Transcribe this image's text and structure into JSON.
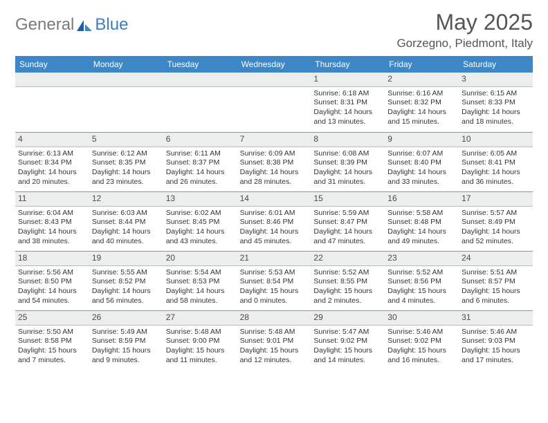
{
  "brand": {
    "general": "General",
    "blue": "Blue"
  },
  "header": {
    "month_title": "May 2025",
    "location": "Gorzegno, Piedmont, Italy"
  },
  "colors": {
    "header_bar": "#3d87c7",
    "dayname_text": "#ffffff",
    "daynum_bg": "#eceded",
    "row_border": "#8e9396",
    "body_text": "#333333"
  },
  "day_names": [
    "Sunday",
    "Monday",
    "Tuesday",
    "Wednesday",
    "Thursday",
    "Friday",
    "Saturday"
  ],
  "weeks": [
    [
      null,
      null,
      null,
      null,
      {
        "n": "1",
        "sunrise": "Sunrise: 6:18 AM",
        "sunset": "Sunset: 8:31 PM",
        "daylight": "Daylight: 14 hours and 13 minutes."
      },
      {
        "n": "2",
        "sunrise": "Sunrise: 6:16 AM",
        "sunset": "Sunset: 8:32 PM",
        "daylight": "Daylight: 14 hours and 15 minutes."
      },
      {
        "n": "3",
        "sunrise": "Sunrise: 6:15 AM",
        "sunset": "Sunset: 8:33 PM",
        "daylight": "Daylight: 14 hours and 18 minutes."
      }
    ],
    [
      {
        "n": "4",
        "sunrise": "Sunrise: 6:13 AM",
        "sunset": "Sunset: 8:34 PM",
        "daylight": "Daylight: 14 hours and 20 minutes."
      },
      {
        "n": "5",
        "sunrise": "Sunrise: 6:12 AM",
        "sunset": "Sunset: 8:35 PM",
        "daylight": "Daylight: 14 hours and 23 minutes."
      },
      {
        "n": "6",
        "sunrise": "Sunrise: 6:11 AM",
        "sunset": "Sunset: 8:37 PM",
        "daylight": "Daylight: 14 hours and 26 minutes."
      },
      {
        "n": "7",
        "sunrise": "Sunrise: 6:09 AM",
        "sunset": "Sunset: 8:38 PM",
        "daylight": "Daylight: 14 hours and 28 minutes."
      },
      {
        "n": "8",
        "sunrise": "Sunrise: 6:08 AM",
        "sunset": "Sunset: 8:39 PM",
        "daylight": "Daylight: 14 hours and 31 minutes."
      },
      {
        "n": "9",
        "sunrise": "Sunrise: 6:07 AM",
        "sunset": "Sunset: 8:40 PM",
        "daylight": "Daylight: 14 hours and 33 minutes."
      },
      {
        "n": "10",
        "sunrise": "Sunrise: 6:05 AM",
        "sunset": "Sunset: 8:41 PM",
        "daylight": "Daylight: 14 hours and 36 minutes."
      }
    ],
    [
      {
        "n": "11",
        "sunrise": "Sunrise: 6:04 AM",
        "sunset": "Sunset: 8:43 PM",
        "daylight": "Daylight: 14 hours and 38 minutes."
      },
      {
        "n": "12",
        "sunrise": "Sunrise: 6:03 AM",
        "sunset": "Sunset: 8:44 PM",
        "daylight": "Daylight: 14 hours and 40 minutes."
      },
      {
        "n": "13",
        "sunrise": "Sunrise: 6:02 AM",
        "sunset": "Sunset: 8:45 PM",
        "daylight": "Daylight: 14 hours and 43 minutes."
      },
      {
        "n": "14",
        "sunrise": "Sunrise: 6:01 AM",
        "sunset": "Sunset: 8:46 PM",
        "daylight": "Daylight: 14 hours and 45 minutes."
      },
      {
        "n": "15",
        "sunrise": "Sunrise: 5:59 AM",
        "sunset": "Sunset: 8:47 PM",
        "daylight": "Daylight: 14 hours and 47 minutes."
      },
      {
        "n": "16",
        "sunrise": "Sunrise: 5:58 AM",
        "sunset": "Sunset: 8:48 PM",
        "daylight": "Daylight: 14 hours and 49 minutes."
      },
      {
        "n": "17",
        "sunrise": "Sunrise: 5:57 AM",
        "sunset": "Sunset: 8:49 PM",
        "daylight": "Daylight: 14 hours and 52 minutes."
      }
    ],
    [
      {
        "n": "18",
        "sunrise": "Sunrise: 5:56 AM",
        "sunset": "Sunset: 8:50 PM",
        "daylight": "Daylight: 14 hours and 54 minutes."
      },
      {
        "n": "19",
        "sunrise": "Sunrise: 5:55 AM",
        "sunset": "Sunset: 8:52 PM",
        "daylight": "Daylight: 14 hours and 56 minutes."
      },
      {
        "n": "20",
        "sunrise": "Sunrise: 5:54 AM",
        "sunset": "Sunset: 8:53 PM",
        "daylight": "Daylight: 14 hours and 58 minutes."
      },
      {
        "n": "21",
        "sunrise": "Sunrise: 5:53 AM",
        "sunset": "Sunset: 8:54 PM",
        "daylight": "Daylight: 15 hours and 0 minutes."
      },
      {
        "n": "22",
        "sunrise": "Sunrise: 5:52 AM",
        "sunset": "Sunset: 8:55 PM",
        "daylight": "Daylight: 15 hours and 2 minutes."
      },
      {
        "n": "23",
        "sunrise": "Sunrise: 5:52 AM",
        "sunset": "Sunset: 8:56 PM",
        "daylight": "Daylight: 15 hours and 4 minutes."
      },
      {
        "n": "24",
        "sunrise": "Sunrise: 5:51 AM",
        "sunset": "Sunset: 8:57 PM",
        "daylight": "Daylight: 15 hours and 6 minutes."
      }
    ],
    [
      {
        "n": "25",
        "sunrise": "Sunrise: 5:50 AM",
        "sunset": "Sunset: 8:58 PM",
        "daylight": "Daylight: 15 hours and 7 minutes."
      },
      {
        "n": "26",
        "sunrise": "Sunrise: 5:49 AM",
        "sunset": "Sunset: 8:59 PM",
        "daylight": "Daylight: 15 hours and 9 minutes."
      },
      {
        "n": "27",
        "sunrise": "Sunrise: 5:48 AM",
        "sunset": "Sunset: 9:00 PM",
        "daylight": "Daylight: 15 hours and 11 minutes."
      },
      {
        "n": "28",
        "sunrise": "Sunrise: 5:48 AM",
        "sunset": "Sunset: 9:01 PM",
        "daylight": "Daylight: 15 hours and 12 minutes."
      },
      {
        "n": "29",
        "sunrise": "Sunrise: 5:47 AM",
        "sunset": "Sunset: 9:02 PM",
        "daylight": "Daylight: 15 hours and 14 minutes."
      },
      {
        "n": "30",
        "sunrise": "Sunrise: 5:46 AM",
        "sunset": "Sunset: 9:02 PM",
        "daylight": "Daylight: 15 hours and 16 minutes."
      },
      {
        "n": "31",
        "sunrise": "Sunrise: 5:46 AM",
        "sunset": "Sunset: 9:03 PM",
        "daylight": "Daylight: 15 hours and 17 minutes."
      }
    ]
  ]
}
